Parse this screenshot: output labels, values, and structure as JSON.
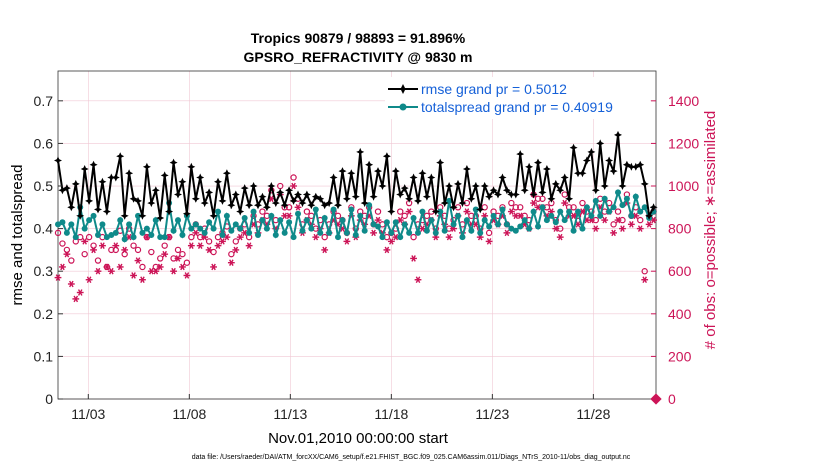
{
  "chart_data": {
    "type": "line",
    "title_line1": "Tropics 90879 / 98893 = 91.896%",
    "title_line2": "GPSRO_REFRACTIVITY @ 9830 m",
    "xlabel": "Nov.01,2010 00:00:00 start",
    "ylabel_left": "rmse and totalspread",
    "ylabel_right": "# of obs: o=possible; ∗=assimilated",
    "footnote": "data file: /Users/raeder/DAI/ATM_forcXX/CAM6_setup/f.e21.FHIST_BGC.f09_025.CAM6assim.011/Diags_NTrS_2010-11/obs_diag_output.nc",
    "xlim": [
      1.5,
      31.1
    ],
    "ylim_left": [
      0,
      0.77
    ],
    "ylim_right": [
      0,
      1540
    ],
    "x_ticks": [
      3,
      8,
      13,
      18,
      23,
      28
    ],
    "x_tick_labels": [
      "11/03",
      "11/08",
      "11/13",
      "11/18",
      "11/23",
      "11/28"
    ],
    "y_left_ticks": [
      0,
      0.1,
      0.2,
      0.3,
      0.4,
      0.5,
      0.6,
      0.7
    ],
    "y_left_tick_labels": [
      "0",
      "0.1",
      "0.2",
      "0.3",
      "0.4",
      "0.5",
      "0.6",
      "0.7"
    ],
    "y_right_ticks": [
      0,
      200,
      400,
      600,
      800,
      1000,
      1200,
      1400
    ],
    "y_right_tick_labels": [
      "0",
      "200",
      "400",
      "600",
      "800",
      "1000",
      "1200",
      "1400"
    ],
    "legend": {
      "position": "top-right",
      "entries": [
        "rmse grand pr = 0.5012",
        "totalspread grand pr = 0.40919"
      ]
    },
    "colors": {
      "rmse": "#000000",
      "spread": "#0f8a8a",
      "obs": "#cc1457",
      "legend_text": "#1560d8",
      "grid": "#f0c8d4"
    },
    "series": [
      {
        "name": "rmse",
        "values": [
          0.56,
          0.49,
          0.495,
          0.45,
          0.505,
          0.43,
          0.54,
          0.465,
          0.55,
          0.445,
          0.51,
          0.44,
          0.52,
          0.52,
          0.57,
          0.43,
          0.53,
          0.47,
          0.465,
          0.43,
          0.545,
          0.46,
          0.49,
          0.425,
          0.525,
          0.44,
          0.555,
          0.48,
          0.51,
          0.435,
          0.545,
          0.47,
          0.52,
          0.46,
          0.485,
          0.43,
          0.51,
          0.465,
          0.53,
          0.455,
          0.48,
          0.44,
          0.495,
          0.455,
          0.5,
          0.455,
          0.475,
          0.45,
          0.5,
          0.46,
          0.485,
          0.455,
          0.49,
          0.465,
          0.48,
          0.46,
          0.48,
          0.455,
          0.475,
          0.47,
          0.455,
          0.46,
          0.52,
          0.455,
          0.535,
          0.47,
          0.53,
          0.475,
          0.58,
          0.46,
          0.55,
          0.475,
          0.535,
          0.5,
          0.57,
          0.44,
          0.535,
          0.48,
          0.495,
          0.47,
          0.52,
          0.465,
          0.53,
          0.475,
          0.52,
          0.44,
          0.555,
          0.46,
          0.5,
          0.45,
          0.505,
          0.46,
          0.54,
          0.47,
          0.5,
          0.445,
          0.5,
          0.475,
          0.49,
          0.48,
          0.52,
          0.49,
          0.48,
          0.48,
          0.575,
          0.49,
          0.545,
          0.48,
          0.555,
          0.485,
          0.54,
          0.47,
          0.505,
          0.49,
          0.52,
          0.47,
          0.59,
          0.53,
          0.53,
          0.56,
          0.58,
          0.49,
          0.6,
          0.5,
          0.56,
          0.535,
          0.62,
          0.5,
          0.55,
          0.545,
          0.545,
          0.55,
          0.505,
          0.43,
          0.45
        ],
        "x_start": 1.5,
        "x_step": 0.22
      },
      {
        "name": "totalspread",
        "values": [
          0.41,
          0.415,
          0.39,
          0.41,
          0.38,
          0.45,
          0.4,
          0.42,
          0.43,
          0.385,
          0.41,
          0.38,
          0.385,
          0.39,
          0.42,
          0.375,
          0.41,
          0.38,
          0.43,
          0.39,
          0.4,
          0.385,
          0.42,
          0.38,
          0.38,
          0.46,
          0.395,
          0.42,
          0.385,
          0.43,
          0.4,
          0.41,
          0.4,
          0.39,
          0.415,
          0.4,
          0.44,
          0.385,
          0.43,
          0.395,
          0.41,
          0.4,
          0.425,
          0.39,
          0.44,
          0.385,
          0.42,
          0.4,
          0.43,
          0.385,
          0.42,
          0.39,
          0.415,
          0.38,
          0.435,
          0.395,
          0.42,
          0.4,
          0.445,
          0.39,
          0.425,
          0.39,
          0.445,
          0.38,
          0.42,
          0.39,
          0.445,
          0.385,
          0.43,
          0.395,
          0.455,
          0.41,
          0.405,
          0.38,
          0.415,
          0.39,
          0.415,
          0.38,
          0.41,
          0.39,
          0.425,
          0.39,
          0.44,
          0.395,
          0.42,
          0.39,
          0.44,
          0.395,
          0.465,
          0.41,
          0.43,
          0.38,
          0.42,
          0.395,
          0.445,
          0.39,
          0.42,
          0.405,
          0.43,
          0.41,
          0.445,
          0.41,
          0.4,
          0.395,
          0.405,
          0.42,
          0.4,
          0.44,
          0.405,
          0.45,
          0.42,
          0.43,
          0.415,
          0.44,
          0.42,
          0.44,
          0.395,
          0.44,
          0.4,
          0.45,
          0.43,
          0.465,
          0.43,
          0.47,
          0.44,
          0.45,
          0.485,
          0.455,
          0.47,
          0.43,
          0.475,
          0.44,
          0.45,
          0.425,
          0.44
        ],
        "x_start": 1.5,
        "x_step": 0.22
      },
      {
        "name": "obs_possible",
        "values": [
          780,
          730,
          700,
          650,
          740,
          760,
          680,
          760,
          720,
          650,
          760,
          620,
          700,
          700,
          790,
          680,
          800,
          720,
          700,
          620,
          760,
          690,
          620,
          660,
          720,
          760,
          660,
          700,
          680,
          640,
          760,
          820,
          760,
          800,
          740,
          690,
          760,
          780,
          810,
          680,
          740,
          800,
          820,
          760,
          860,
          820,
          880,
          860,
          980,
          840,
          1000,
          900,
          900,
          1040,
          940,
          820,
          880,
          860,
          800,
          840,
          760,
          820,
          880,
          860,
          840,
          780,
          900,
          800,
          880,
          860,
          900,
          820,
          880,
          820,
          760,
          780,
          800,
          880,
          860,
          920,
          760,
          820,
          840,
          860,
          880,
          800,
          900,
          860,
          800,
          840,
          900,
          820,
          920,
          860,
          860,
          800,
          900,
          780,
          880,
          860,
          900,
          820,
          920,
          900,
          900,
          860,
          840,
          960,
          940,
          940,
          900,
          920,
          840,
          800,
          960,
          900,
          900,
          860,
          920,
          880,
          880,
          840,
          940,
          880,
          920,
          820,
          880,
          840,
          960,
          860,
          900,
          840,
          600,
          860,
          880
        ],
        "x_start": 1.5,
        "x_step": 0.22
      },
      {
        "name": "obs_assimilated",
        "values": [
          570,
          620,
          680,
          540,
          470,
          500,
          740,
          560,
          700,
          600,
          720,
          620,
          600,
          720,
          620,
          700,
          760,
          580,
          650,
          560,
          760,
          600,
          600,
          620,
          680,
          760,
          600,
          660,
          620,
          580,
          720,
          780,
          720,
          760,
          700,
          620,
          720,
          740,
          760,
          640,
          700,
          760,
          780,
          720,
          820,
          780,
          840,
          820,
          940,
          800,
          960,
          860,
          860,
          1000,
          900,
          780,
          840,
          820,
          760,
          800,
          700,
          780,
          840,
          820,
          800,
          740,
          860,
          760,
          840,
          820,
          860,
          780,
          840,
          780,
          700,
          740,
          760,
          840,
          820,
          880,
          660,
          560,
          800,
          820,
          840,
          760,
          860,
          820,
          760,
          800,
          860,
          780,
          880,
          820,
          820,
          760,
          860,
          740,
          840,
          820,
          860,
          780,
          880,
          860,
          860,
          820,
          800,
          920,
          900,
          900,
          860,
          880,
          800,
          760,
          920,
          860,
          860,
          820,
          880,
          840,
          840,
          800,
          900,
          840,
          880,
          780,
          840,
          800,
          920,
          820,
          860,
          800,
          560,
          820,
          840
        ],
        "x_start": 1.5,
        "x_step": 0.22
      }
    ]
  }
}
